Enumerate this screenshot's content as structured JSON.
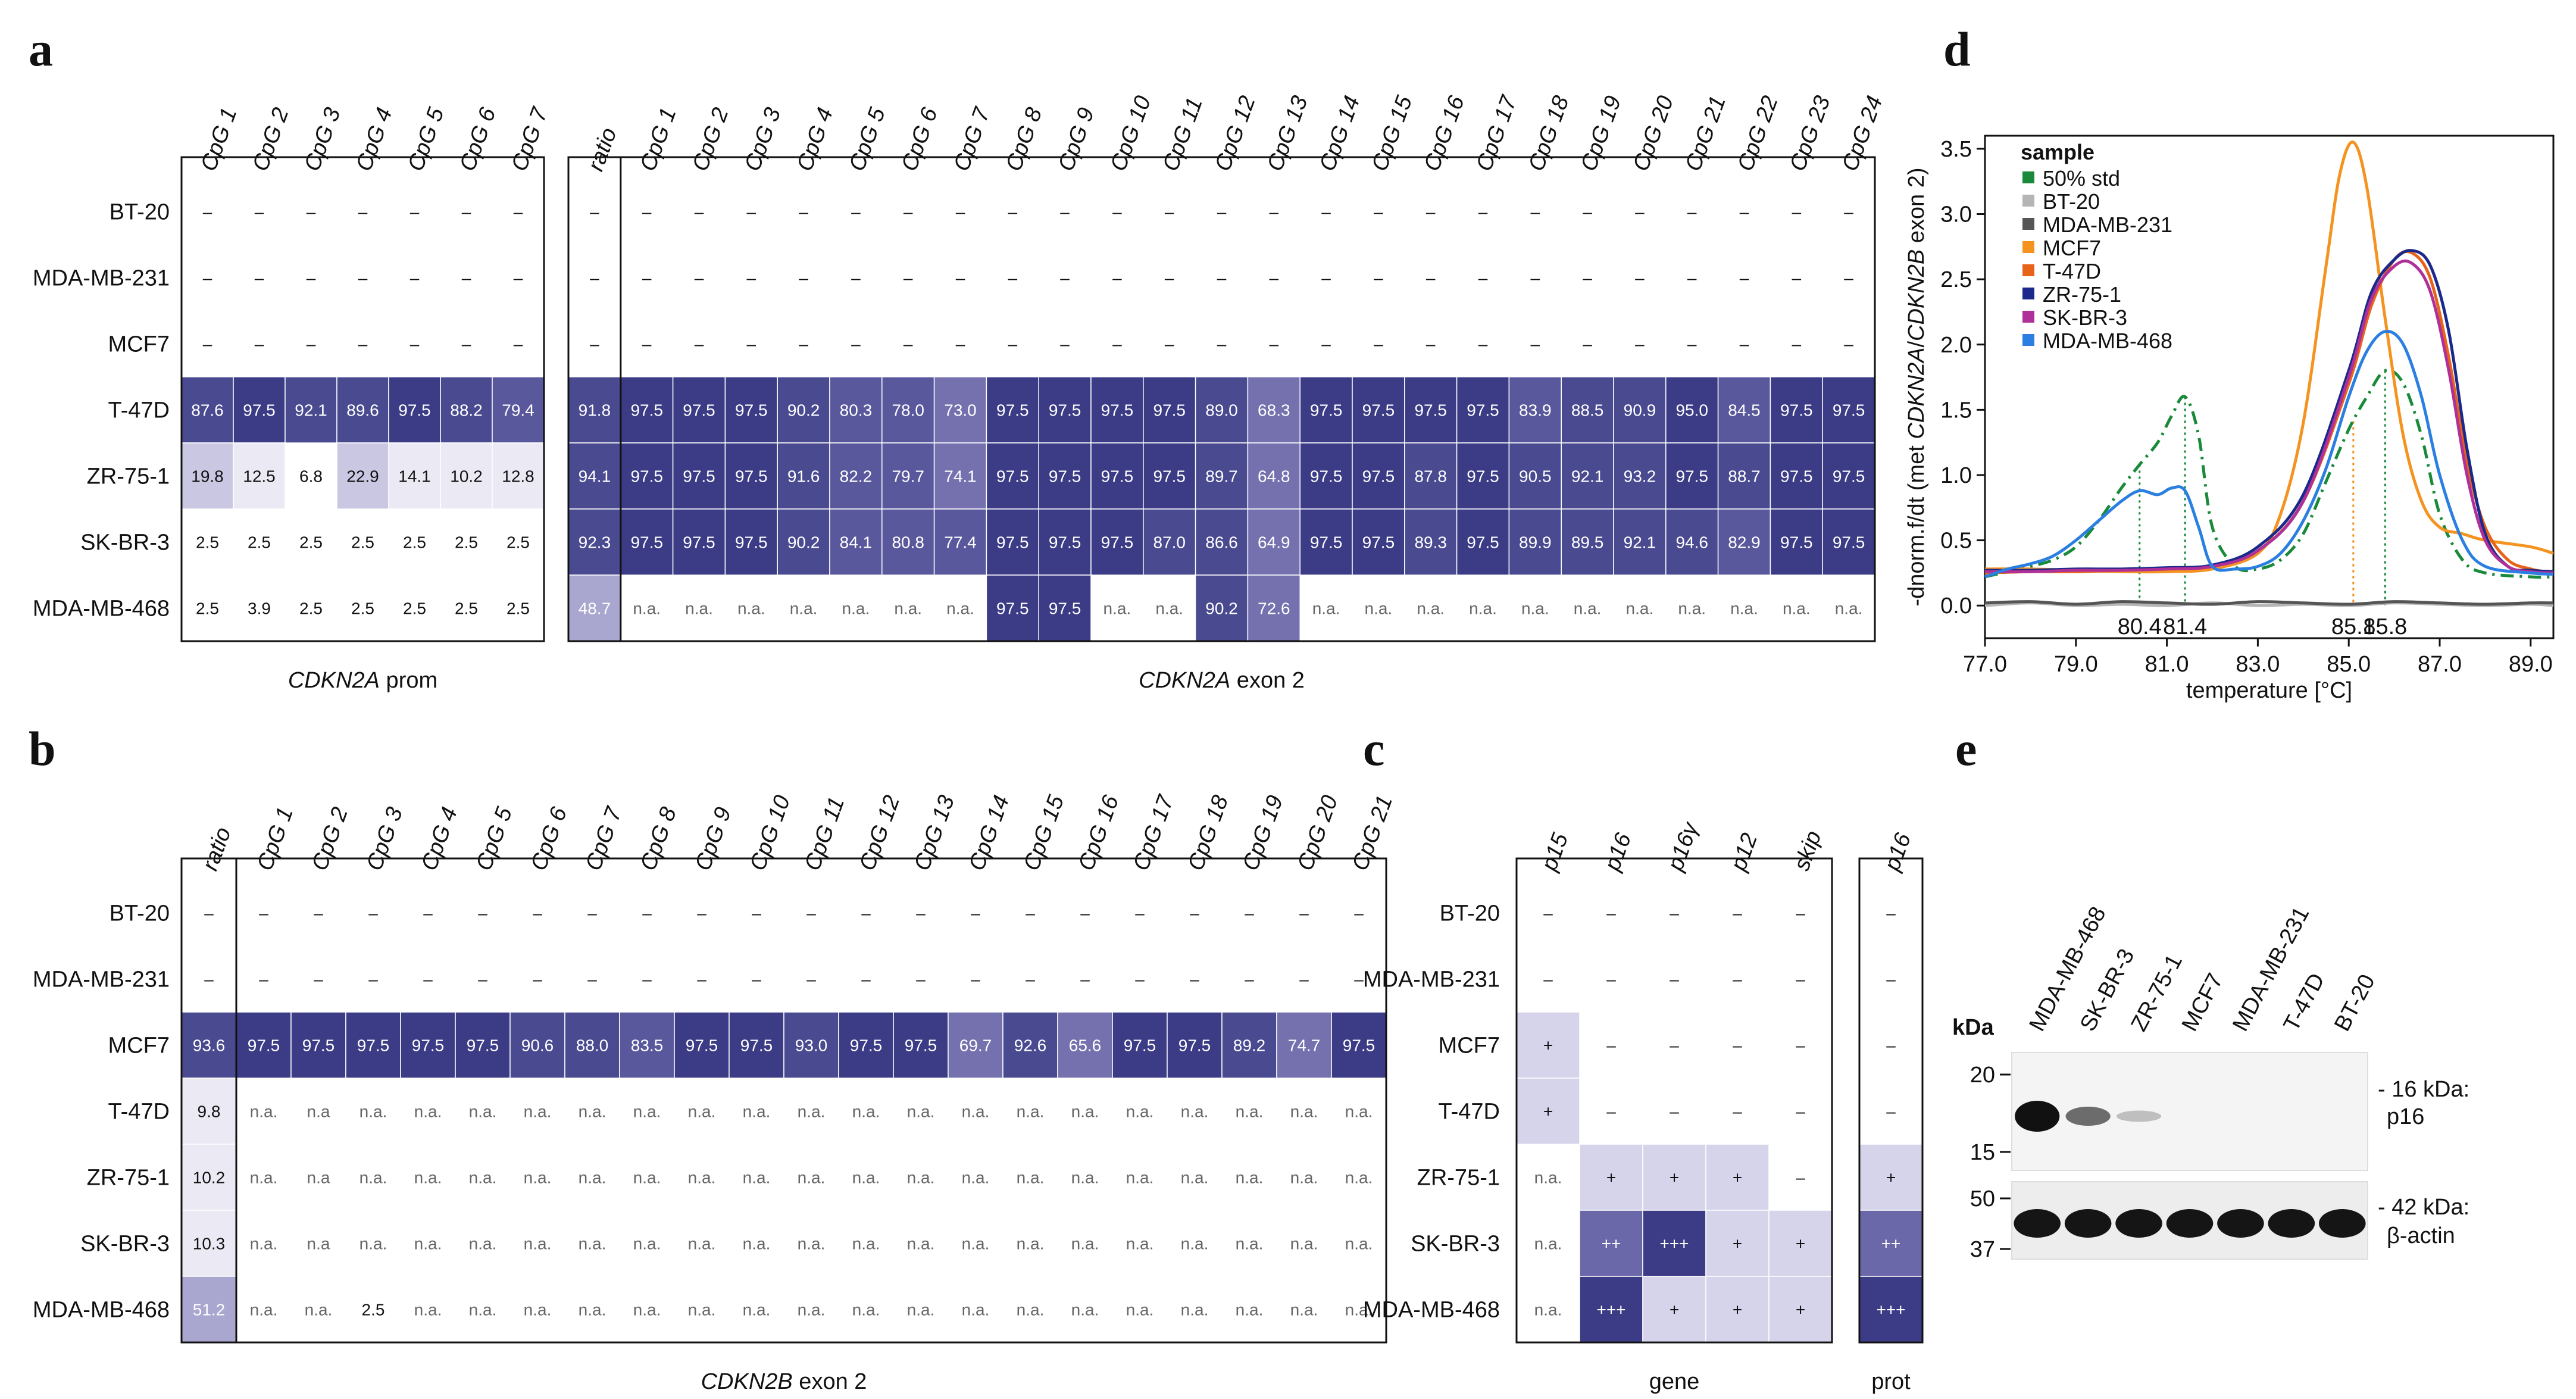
{
  "panels": {
    "a": "a",
    "b": "b",
    "c": "c",
    "d": "d",
    "e": "e"
  },
  "colors": {
    "high": "#3b3b86",
    "mid": "#6a68a8",
    "low": "#a9a6cf",
    "pale": "#d6d4ea",
    "frame": "#111111",
    "na": "#666666"
  },
  "panel_a": {
    "rows": [
      "BT-20",
      "MDA-MB-231",
      "MCF7",
      "T-47D",
      "ZR-75-1",
      "SK-BR-3",
      "MDA-MB-468"
    ],
    "prom": {
      "title_gene": "CDKN2A",
      "title_rest": " prom",
      "columns": [
        "CpG 1",
        "CpG 2",
        "CpG 3",
        "CpG 4",
        "CpG 5",
        "CpG 6",
        "CpG 7"
      ],
      "values": [
        [
          "–",
          "–",
          "–",
          "–",
          "–",
          "–",
          "–"
        ],
        [
          "–",
          "–",
          "–",
          "–",
          "–",
          "–",
          "–"
        ],
        [
          "–",
          "–",
          "–",
          "–",
          "–",
          "–",
          "–"
        ],
        [
          "87.6",
          "97.5",
          "92.1",
          "89.6",
          "97.5",
          "88.2",
          "79.4"
        ],
        [
          "19.8",
          "12.5",
          "6.8",
          "22.9",
          "14.1",
          "10.2",
          "12.8"
        ],
        [
          "2.5",
          "2.5",
          "2.5",
          "2.5",
          "2.5",
          "2.5",
          "2.5"
        ],
        [
          "2.5",
          "3.9",
          "2.5",
          "2.5",
          "2.5",
          "2.5",
          "2.5"
        ]
      ]
    },
    "exon": {
      "title_gene": "CDKN2A",
      "title_rest": " exon 2",
      "columns": [
        "ratio",
        "CpG 1",
        "CpG 2",
        "CpG 3",
        "CpG 4",
        "CpG 5",
        "CpG 6",
        "CpG 7",
        "CpG 8",
        "CpG 9",
        "CpG 10",
        "CpG 11",
        "CpG 12",
        "CpG 13",
        "CpG 14",
        "CpG 15",
        "CpG 16",
        "CpG 17",
        "CpG 18",
        "CpG 19",
        "CpG 20",
        "CpG 21",
        "CpG 22",
        "CpG 23",
        "CpG 24"
      ],
      "values": [
        [
          "–",
          "–",
          "–",
          "–",
          "–",
          "–",
          "–",
          "–",
          "–",
          "–",
          "–",
          "–",
          "–",
          "–",
          "–",
          "–",
          "–",
          "–",
          "–",
          "–",
          "–",
          "–",
          "–",
          "–",
          "–"
        ],
        [
          "–",
          "–",
          "–",
          "–",
          "–",
          "–",
          "–",
          "–",
          "–",
          "–",
          "–",
          "–",
          "–",
          "–",
          "–",
          "–",
          "–",
          "–",
          "–",
          "–",
          "–",
          "–",
          "–",
          "–",
          "–"
        ],
        [
          "–",
          "–",
          "–",
          "–",
          "–",
          "–",
          "–",
          "–",
          "–",
          "–",
          "–",
          "–",
          "–",
          "–",
          "–",
          "–",
          "–",
          "–",
          "–",
          "–",
          "–",
          "–",
          "–",
          "–",
          "–"
        ],
        [
          "91.8",
          "97.5",
          "97.5",
          "97.5",
          "90.2",
          "80.3",
          "78.0",
          "73.0",
          "97.5",
          "97.5",
          "97.5",
          "97.5",
          "89.0",
          "68.3",
          "97.5",
          "97.5",
          "97.5",
          "97.5",
          "83.9",
          "88.5",
          "90.9",
          "95.0",
          "84.5",
          "97.5",
          "97.5"
        ],
        [
          "94.1",
          "97.5",
          "97.5",
          "97.5",
          "91.6",
          "82.2",
          "79.7",
          "74.1",
          "97.5",
          "97.5",
          "97.5",
          "97.5",
          "89.7",
          "64.8",
          "97.5",
          "97.5",
          "87.8",
          "97.5",
          "90.5",
          "92.1",
          "93.2",
          "97.5",
          "88.7",
          "97.5",
          "97.5"
        ],
        [
          "92.3",
          "97.5",
          "97.5",
          "97.5",
          "90.2",
          "84.1",
          "80.8",
          "77.4",
          "97.5",
          "97.5",
          "97.5",
          "87.0",
          "86.6",
          "64.9",
          "97.5",
          "97.5",
          "89.3",
          "97.5",
          "89.9",
          "89.5",
          "92.1",
          "94.6",
          "82.9",
          "97.5",
          "97.5"
        ],
        [
          "48.7",
          "n.a.",
          "n.a.",
          "n.a.",
          "n.a.",
          "n.a.",
          "n.a.",
          "n.a.",
          "97.5",
          "97.5",
          "n.a.",
          "n.a.",
          "90.2",
          "72.6",
          "n.a.",
          "n.a.",
          "n.a.",
          "n.a.",
          "n.a.",
          "n.a.",
          "n.a.",
          "n.a.",
          "n.a.",
          "n.a.",
          "n.a."
        ]
      ]
    }
  },
  "panel_b": {
    "title_gene": "CDKN2B",
    "title_rest": " exon 2",
    "rows": [
      "BT-20",
      "MDA-MB-231",
      "MCF7",
      "T-47D",
      "ZR-75-1",
      "SK-BR-3",
      "MDA-MB-468"
    ],
    "columns": [
      "ratio",
      "CpG 1",
      "CpG 2",
      "CpG 3",
      "CpG 4",
      "CpG 5",
      "CpG 6",
      "CpG 7",
      "CpG 8",
      "CpG 9",
      "CpG 10",
      "CpG 11",
      "CpG 12",
      "CpG 13",
      "CpG 14",
      "CpG 15",
      "CpG 16",
      "CpG 17",
      "CpG 18",
      "CpG 19",
      "CpG 20",
      "CpG 21"
    ],
    "values": [
      [
        "–",
        "–",
        "–",
        "–",
        "–",
        "–",
        "–",
        "–",
        "–",
        "–",
        "–",
        "–",
        "–",
        "–",
        "–",
        "–",
        "–",
        "–",
        "–",
        "–",
        "–",
        "–"
      ],
      [
        "–",
        "–",
        "–",
        "–",
        "–",
        "–",
        "–",
        "–",
        "–",
        "–",
        "–",
        "–",
        "–",
        "–",
        "–",
        "–",
        "–",
        "–",
        "–",
        "–",
        "–",
        "–"
      ],
      [
        "93.6",
        "97.5",
        "97.5",
        "97.5",
        "97.5",
        "97.5",
        "90.6",
        "88.0",
        "83.5",
        "97.5",
        "97.5",
        "93.0",
        "97.5",
        "97.5",
        "69.7",
        "92.6",
        "65.6",
        "97.5",
        "97.5",
        "89.2",
        "74.7",
        "97.5"
      ],
      [
        "9.8",
        "n.a.",
        "n.a",
        "n.a.",
        "n.a.",
        "n.a.",
        "n.a.",
        "n.a.",
        "n.a.",
        "n.a.",
        "n.a.",
        "n.a.",
        "n.a.",
        "n.a.",
        "n.a.",
        "n.a.",
        "n.a.",
        "n.a.",
        "n.a.",
        "n.a.",
        "n.a.",
        "n.a."
      ],
      [
        "10.2",
        "n.a.",
        "n.a",
        "n.a.",
        "n.a.",
        "n.a.",
        "n.a.",
        "n.a.",
        "n.a.",
        "n.a.",
        "n.a.",
        "n.a.",
        "n.a.",
        "n.a.",
        "n.a.",
        "n.a.",
        "n.a.",
        "n.a.",
        "n.a.",
        "n.a.",
        "n.a.",
        "n.a."
      ],
      [
        "10.3",
        "n.a.",
        "n.a",
        "n.a.",
        "n.a.",
        "n.a.",
        "n.a.",
        "n.a.",
        "n.a.",
        "n.a.",
        "n.a.",
        "n.a.",
        "n.a.",
        "n.a.",
        "n.a.",
        "n.a.",
        "n.a.",
        "n.a.",
        "n.a.",
        "n.a.",
        "n.a.",
        "n.a."
      ],
      [
        "51.2",
        "n.a.",
        "n.a.",
        "2.5",
        "n.a.",
        "n.a.",
        "n.a.",
        "n.a.",
        "n.a.",
        "n.a.",
        "n.a.",
        "n.a.",
        "n.a.",
        "n.a.",
        "n.a.",
        "n.a.",
        "n.a.",
        "n.a.",
        "n.a.",
        "n.a.",
        "n.a.",
        "n.a."
      ]
    ]
  },
  "panel_c": {
    "rows": [
      "BT-20",
      "MDA-MB-231",
      "MCF7",
      "T-47D",
      "ZR-75-1",
      "SK-BR-3",
      "MDA-MB-468"
    ],
    "gene_columns": [
      "p15",
      "p16",
      "p16γ",
      "p12",
      "skip"
    ],
    "prot_columns": [
      "p16"
    ],
    "gene_label": "gene",
    "prot_label": "prot",
    "gene_values": [
      [
        "–",
        "–",
        "–",
        "–",
        "–"
      ],
      [
        "–",
        "–",
        "–",
        "–",
        "–"
      ],
      [
        "+",
        "–",
        "–",
        "–",
        "–"
      ],
      [
        "+",
        "–",
        "–",
        "–",
        "–"
      ],
      [
        "n.a.",
        "+",
        "+",
        "+",
        "–"
      ],
      [
        "n.a.",
        "++",
        "+++",
        "+",
        "+"
      ],
      [
        "n.a.",
        "+++",
        "+",
        "+",
        "+"
      ]
    ],
    "prot_values": [
      [
        "–"
      ],
      [
        "–"
      ],
      [
        "–"
      ],
      [
        "–"
      ],
      [
        "+"
      ],
      [
        "++"
      ],
      [
        "+++"
      ]
    ]
  },
  "panel_d": {
    "chart_data": {
      "type": "line",
      "legend_title": "sample",
      "xlabel": "temperature [°C]",
      "ylabel_prefix": "-dnorm.f/dt (met ",
      "ylabel_gene1": "CDKN2A",
      "ylabel_sep": "/",
      "ylabel_gene2": "CDKN2B",
      "ylabel_suffix": " exon 2)",
      "xlim": [
        77.0,
        89.5
      ],
      "ylim": [
        -0.25,
        3.6
      ],
      "xticks": [
        "77.0",
        "79.0",
        "81.0",
        "83.0",
        "85.0",
        "87.0",
        "89.0"
      ],
      "xtick_values": [
        77,
        79,
        81,
        83,
        85,
        87,
        89
      ],
      "yticks": [
        "0.0",
        "0.5",
        "1.0",
        "1.5",
        "2.0",
        "2.5",
        "3.0",
        "3.5"
      ],
      "ytick_values": [
        0,
        0.5,
        1,
        1.5,
        2,
        2.5,
        3,
        3.5
      ],
      "peak_labels": [
        {
          "text": "80.4",
          "x": 80.4,
          "color": "#1a8a3a"
        },
        {
          "text": "81.4",
          "x": 81.4,
          "color": "#1a8a3a"
        },
        {
          "text": "85.1",
          "x": 85.1,
          "color": "#f0901e"
        },
        {
          "text": "85.8",
          "x": 85.8,
          "color": "#1a8a3a"
        }
      ],
      "series": [
        {
          "name": "50% std",
          "color": "#1a8a3a",
          "dashed": true,
          "x": [
            77,
            77.5,
            78,
            78.5,
            79,
            79.5,
            80,
            80.4,
            80.8,
            81.1,
            81.4,
            81.7,
            82,
            82.5,
            83,
            83.5,
            84,
            84.5,
            85,
            85.4,
            85.8,
            86.2,
            86.6,
            87,
            87.5,
            88,
            89,
            89.5
          ],
          "y": [
            0.22,
            0.26,
            0.3,
            0.35,
            0.45,
            0.65,
            0.9,
            1.08,
            1.25,
            1.45,
            1.6,
            1.3,
            0.6,
            0.3,
            0.28,
            0.35,
            0.55,
            0.95,
            1.35,
            1.6,
            1.8,
            1.7,
            1.3,
            0.7,
            0.35,
            0.25,
            0.22,
            0.22
          ]
        },
        {
          "name": "BT-20",
          "color": "#b5b5b5",
          "dashed": false,
          "x": [
            77,
            78,
            79,
            80,
            81,
            82,
            83,
            84,
            85,
            86,
            87,
            88,
            89,
            89.5
          ],
          "y": [
            0.0,
            0.02,
            0.0,
            0.01,
            0.0,
            0.02,
            0.0,
            0.01,
            0.0,
            0.02,
            0.01,
            0.0,
            0.01,
            0.0
          ]
        },
        {
          "name": "MDA-MB-231",
          "color": "#555555",
          "dashed": false,
          "x": [
            77,
            78,
            79,
            80,
            81,
            82,
            83,
            84,
            85,
            86,
            87,
            88,
            89,
            89.5
          ],
          "y": [
            0.02,
            0.03,
            0.01,
            0.03,
            0.02,
            0.01,
            0.03,
            0.02,
            0.01,
            0.03,
            0.02,
            0.01,
            0.02,
            0.02
          ]
        },
        {
          "name": "MCF7",
          "color": "#f59320",
          "dashed": false,
          "x": [
            77,
            78,
            79,
            80,
            81,
            82,
            83,
            83.5,
            84,
            84.5,
            84.8,
            85.1,
            85.4,
            85.8,
            86.2,
            86.6,
            87,
            87.5,
            88,
            89,
            89.5
          ],
          "y": [
            0.28,
            0.28,
            0.27,
            0.26,
            0.26,
            0.28,
            0.4,
            0.7,
            1.4,
            2.6,
            3.3,
            3.55,
            3.2,
            2.2,
            1.3,
            0.8,
            0.6,
            0.55,
            0.5,
            0.45,
            0.4
          ]
        },
        {
          "name": "T-47D",
          "color": "#e8631a",
          "dashed": false,
          "x": [
            77,
            78,
            79,
            80,
            81,
            82,
            83,
            84,
            85,
            85.5,
            86,
            86.4,
            86.8,
            87.2,
            87.6,
            88,
            88.5,
            89,
            89.5
          ],
          "y": [
            0.25,
            0.26,
            0.26,
            0.27,
            0.28,
            0.3,
            0.42,
            0.8,
            1.7,
            2.3,
            2.65,
            2.7,
            2.5,
            1.9,
            1.1,
            0.6,
            0.35,
            0.28,
            0.25
          ]
        },
        {
          "name": "ZR-75-1",
          "color": "#1b2a8a",
          "dashed": false,
          "x": [
            77,
            78,
            79,
            80,
            81,
            82,
            83,
            84,
            85,
            85.5,
            86,
            86.4,
            86.8,
            87.2,
            87.6,
            88,
            88.5,
            89,
            89.5
          ],
          "y": [
            0.27,
            0.27,
            0.28,
            0.28,
            0.29,
            0.31,
            0.45,
            0.85,
            1.8,
            2.4,
            2.65,
            2.72,
            2.6,
            2.1,
            1.2,
            0.55,
            0.3,
            0.27,
            0.26
          ]
        },
        {
          "name": "SK-BR-3",
          "color": "#b0309a",
          "dashed": false,
          "x": [
            77,
            78,
            79,
            80,
            81,
            82,
            83,
            84,
            85,
            85.5,
            86,
            86.4,
            86.8,
            87.2,
            87.6,
            88,
            88.5,
            89,
            89.5
          ],
          "y": [
            0.26,
            0.26,
            0.27,
            0.27,
            0.28,
            0.3,
            0.42,
            0.8,
            1.75,
            2.35,
            2.6,
            2.62,
            2.4,
            1.8,
            1.0,
            0.5,
            0.3,
            0.26,
            0.25
          ]
        },
        {
          "name": "MDA-MB-468",
          "color": "#2a7fe0",
          "dashed": false,
          "x": [
            77,
            77.5,
            78,
            78.5,
            79,
            79.5,
            80,
            80.4,
            80.8,
            81.1,
            81.4,
            81.7,
            82,
            82.5,
            83,
            83.5,
            84,
            84.5,
            85,
            85.4,
            85.8,
            86.2,
            86.6,
            87,
            87.5,
            88,
            89,
            89.5
          ],
          "y": [
            0.22,
            0.28,
            0.32,
            0.38,
            0.5,
            0.65,
            0.8,
            0.88,
            0.85,
            0.9,
            0.88,
            0.6,
            0.3,
            0.28,
            0.3,
            0.4,
            0.65,
            1.05,
            1.6,
            1.95,
            2.1,
            2.0,
            1.6,
            1.0,
            0.5,
            0.3,
            0.25,
            0.24
          ]
        }
      ]
    }
  },
  "panel_e": {
    "lanes": [
      "MDA-MB-468",
      "SK-BR-3",
      "ZR-75-1",
      "MCF7",
      "MDA-MB-231",
      "T-47D",
      "BT-20"
    ],
    "kda_title": "kDa",
    "top_markers": [
      "20",
      "15"
    ],
    "bottom_markers": [
      "50",
      "37"
    ],
    "band1_line1": "- 16 kDa:",
    "band1_line2": "p16",
    "band2_line1": "- 42 kDa:",
    "band2_line2": "β-actin",
    "p16_intensity": [
      1.0,
      0.45,
      0.08,
      0,
      0,
      0,
      0
    ]
  }
}
